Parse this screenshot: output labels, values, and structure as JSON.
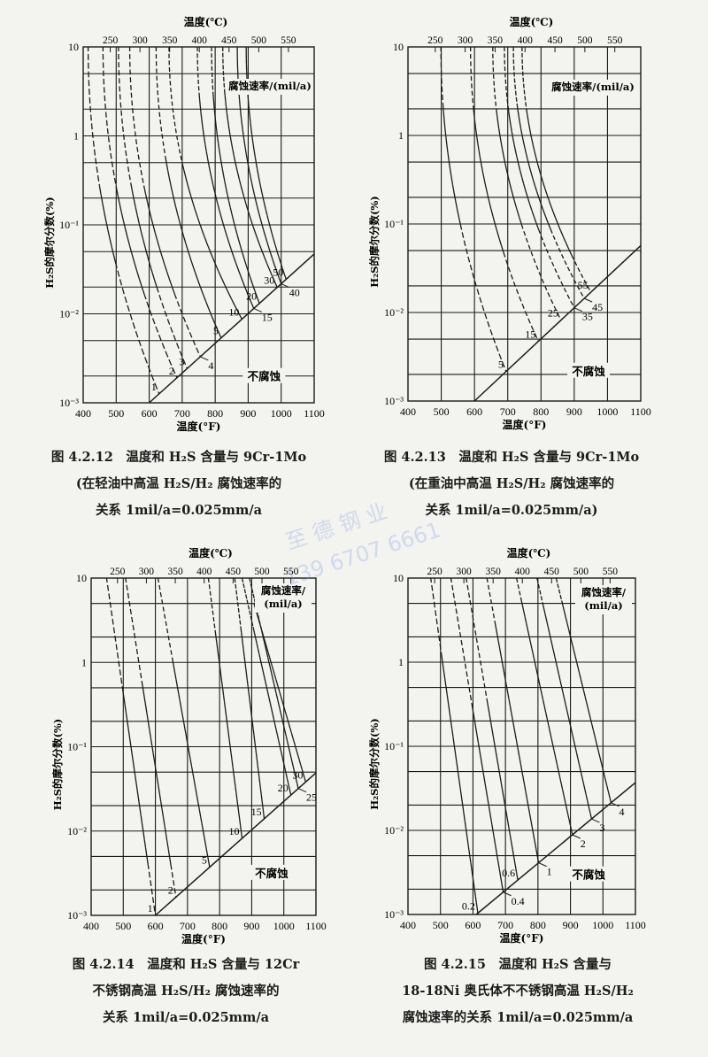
{
  "page": {
    "watermark": [
      "至 德 钢 业",
      "139 6707 6661"
    ]
  },
  "charts_common": {
    "top_axis_title": "温度(℃)",
    "bottom_axis_title": "温度(°F)",
    "y_axis_title": "H₂S的摩尔分数(%)",
    "no_corrosion_label": "不腐蚀"
  },
  "captions": [
    {
      "lines": [
        "图 4.2.12　温度和 H₂S 含量与 9Cr-1Mo",
        "(在轻油中高温 H₂S/H₂ 腐蚀速率的",
        "关系 1mil/a=0.025mm/a"
      ]
    },
    {
      "lines": [
        "图 4.2.13　温度和 H₂S 含量与 9Cr-1Mo",
        "(在重油中高温 H₂S/H₂ 腐蚀速率的",
        "关系 1mil/a=0.025mm/a)"
      ]
    },
    {
      "lines": [
        "图 4.2.14　温度和 H₂S 含量与 12Cr",
        "不锈钢高温 H₂S/H₂ 腐蚀速率的",
        "关系 1mil/a=0.025mm/a"
      ]
    },
    {
      "lines": [
        "图 4.2.15　温度和 H₂S 含量与",
        "18-18Ni 奥氏体不不锈钢高温 H₂S/H₂",
        "腐蚀速率的关系 1mil/a=0.025mm/a"
      ]
    }
  ],
  "chart_data": [
    {
      "type": "line",
      "xlabel": "温度(°F)",
      "x2label": "温度(℃)",
      "ylabel": "H₂S的摩尔分数(%)",
      "xlim": [
        400,
        1100
      ],
      "ylim": [
        0.001,
        10
      ],
      "yscale": "log",
      "grid": true,
      "xticks": [
        "400",
        "500",
        "600",
        "700",
        "800",
        "900",
        "1000",
        "1100"
      ],
      "x2ticks": [
        "250",
        "300",
        "350",
        "400",
        "450",
        "500",
        "550"
      ],
      "yticks": [
        "10",
        "1",
        "10⁻¹",
        "10⁻²",
        "10⁻³"
      ],
      "curve_shape": "concave",
      "series_title": [
        "腐蚀速率/(mil/a)"
      ],
      "boundary": {
        "label": "不腐蚀",
        "points": [
          [
            600,
            0.001
          ],
          [
            1100,
            0.047
          ]
        ]
      },
      "curves": [
        {
          "label": "1",
          "top_F": 415,
          "end_F": 630,
          "dashed": [
            [
              0.25,
              10
            ],
            [
              0.001,
              0.04
            ]
          ]
        },
        {
          "label": "2",
          "top_F": 460,
          "end_F": 684,
          "dashed": [
            [
              0.25,
              10
            ],
            [
              0.001,
              0.02
            ]
          ]
        },
        {
          "label": "3",
          "top_F": 507,
          "end_F": 715,
          "dashed": [
            [
              0.25,
              10
            ],
            [
              0.001,
              0.02
            ]
          ]
        },
        {
          "label": "4",
          "top_F": 541,
          "end_F": 755,
          "dashed": [
            [
              0.25,
              10
            ],
            [
              0.001,
              0.02
            ]
          ],
          "label_side": "right"
        },
        {
          "label": "5",
          "top_F": 621,
          "end_F": 818,
          "dashed": [
            [
              0.5,
              10
            ]
          ]
        },
        {
          "label": "10",
          "top_F": 660,
          "end_F": 881,
          "dashed": [
            [
              0.5,
              10
            ]
          ]
        },
        {
          "label": "15",
          "top_F": 746,
          "end_F": 917,
          "dashed": [
            [
              3,
              10
            ]
          ],
          "label_side": "right"
        },
        {
          "label": "20",
          "top_F": 789,
          "end_F": 934,
          "dashed": [
            [
              3,
              10
            ]
          ]
        },
        {
          "label": "30",
          "top_F": 823,
          "end_F": 988,
          "dashed": [
            [
              3,
              10
            ]
          ]
        },
        {
          "label": "40",
          "top_F": 867,
          "end_F": 1000,
          "dashed": [],
          "label_side": "right"
        },
        {
          "label": "50",
          "top_F": 894,
          "end_F": 1015,
          "dashed": []
        }
      ]
    },
    {
      "type": "line",
      "xlabel": "温度(°F)",
      "x2label": "温度(℃)",
      "ylabel": "H₂S的摩尔分数(%)",
      "xlim": [
        400,
        1100
      ],
      "ylim": [
        0.001,
        10
      ],
      "yscale": "log",
      "grid": true,
      "xticks": [
        "400",
        "500",
        "600",
        "700",
        "800",
        "900",
        "1000",
        "1100"
      ],
      "x2ticks": [
        "250",
        "300",
        "350",
        "400",
        "450",
        "500",
        "550"
      ],
      "yticks": [
        "10",
        "1",
        "10⁻¹",
        "10⁻²",
        "10⁻³"
      ],
      "curve_shape": "concave",
      "series_title": [
        "腐蚀速率/(mil/a)"
      ],
      "boundary": {
        "label": "不腐蚀",
        "points": [
          [
            600,
            0.001
          ],
          [
            1100,
            0.057
          ]
        ]
      },
      "curves": [
        {
          "label": "5",
          "top_F": 499,
          "end_F": 695,
          "dashed": [
            [
              2,
              10
            ],
            [
              0.001,
              0.1
            ]
          ]
        },
        {
          "label": "15",
          "top_F": 588,
          "end_F": 792,
          "dashed": [
            [
              2,
              10
            ],
            [
              0.001,
              0.05
            ]
          ]
        },
        {
          "label": "25",
          "top_F": 655,
          "end_F": 860,
          "dashed": [
            [
              2,
              10
            ],
            [
              0.001,
              0.1
            ]
          ]
        },
        {
          "label": "35",
          "top_F": 690,
          "end_F": 900,
          "dashed": [
            [
              2,
              10
            ],
            [
              0.001,
              0.1
            ]
          ],
          "label_side": "right"
        },
        {
          "label": "45",
          "top_F": 717,
          "end_F": 930,
          "dashed": [
            [
              2,
              10
            ],
            [
              0.001,
              0.1
            ]
          ],
          "label_side": "right"
        },
        {
          "label": "55",
          "top_F": 743,
          "end_F": 950,
          "dashed": [
            [
              2,
              10
            ],
            [
              0.001,
              0.05
            ]
          ]
        }
      ]
    },
    {
      "type": "line",
      "xlabel": "温度(°F)",
      "x2label": "温度(℃)",
      "ylabel": "H₂S的摩尔分数(%)",
      "xlim": [
        400,
        1100
      ],
      "ylim": [
        0.001,
        10
      ],
      "yscale": "log",
      "grid": true,
      "xticks": [
        "400",
        "500",
        "600",
        "700",
        "800",
        "900",
        "1000",
        "1100"
      ],
      "x2ticks": [
        "250",
        "300",
        "350",
        "400",
        "450",
        "500",
        "550"
      ],
      "yticks": [
        "10",
        "1",
        "10⁻¹",
        "10⁻²",
        "10⁻³"
      ],
      "curve_shape": "straight",
      "series_title": [
        "腐蚀速率/",
        "(mil/a)"
      ],
      "boundary": {
        "label": "不腐蚀",
        "points": [
          [
            600,
            0.001
          ],
          [
            1100,
            0.049
          ]
        ]
      },
      "curves": [
        {
          "label": "1",
          "top_F": 448,
          "end_F": 600,
          "dashed": [
            [
              0.5,
              10
            ],
            [
              0.001,
              0.004
            ]
          ]
        },
        {
          "label": "2",
          "top_F": 507,
          "end_F": 664,
          "dashed": [
            [
              0.5,
              10
            ],
            [
              0.001,
              0.004
            ]
          ]
        },
        {
          "label": "5",
          "top_F": 608,
          "end_F": 769,
          "dashed": [
            [
              1,
              10
            ]
          ]
        },
        {
          "label": "10",
          "top_F": 765,
          "end_F": 870,
          "dashed": [
            [
              2.3,
              10
            ]
          ]
        },
        {
          "label": "15",
          "top_F": 847,
          "end_F": 939,
          "dashed": [
            [
              2.3,
              10
            ]
          ]
        },
        {
          "label": "20",
          "top_F": 870,
          "end_F": 1022,
          "dashed": [
            [
              2.3,
              10
            ]
          ]
        },
        {
          "label": "25",
          "top_F": 893,
          "end_F": 1045,
          "dashed": [
            [
              2.3,
              10
            ]
          ],
          "label_side": "right"
        },
        {
          "label": "30",
          "top_F": 907,
          "top_y": 5,
          "end_F": 1068,
          "dashed": []
        }
      ]
    },
    {
      "type": "line",
      "xlabel": "温度(°F)",
      "x2label": "温度(℃)",
      "ylabel": "H₂S的摩尔分数(%)",
      "xlim": [
        400,
        1100
      ],
      "ylim": [
        0.001,
        10
      ],
      "yscale": "log",
      "grid": true,
      "xticks": [
        "400",
        "500",
        "600",
        "700",
        "800",
        "900",
        "1000",
        "1100"
      ],
      "x2ticks": [
        "250",
        "300",
        "350",
        "400",
        "450",
        "500",
        "550"
      ],
      "yticks": [
        "10",
        "1",
        "10⁻¹",
        "10⁻²",
        "10⁻³"
      ],
      "curve_shape": "straight",
      "series_title": [
        "腐蚀速率/",
        "(mil/a)"
      ],
      "boundary": {
        "label": "不腐蚀",
        "points": [
          [
            610,
            0.001
          ],
          [
            1100,
            0.037
          ]
        ]
      },
      "curves": [
        {
          "label": "0.2",
          "top_F": 470,
          "end_F": 615,
          "dashed": [
            [
              1.2,
              10
            ]
          ]
        },
        {
          "label": "0.4",
          "top_F": 532,
          "end_F": 693,
          "dashed": [
            [
              0.3,
              10
            ]
          ],
          "label_side": "right"
        },
        {
          "label": "0.6",
          "top_F": 579,
          "end_F": 738,
          "dashed": [
            [
              0.3,
              10
            ]
          ]
        },
        {
          "label": "1",
          "top_F": 643,
          "end_F": 802,
          "dashed": [
            [
              3,
              10
            ]
          ],
          "label_side": "right"
        },
        {
          "label": "2",
          "top_F": 734,
          "end_F": 906,
          "dashed": [
            [
              5,
              10
            ]
          ],
          "label_side": "right"
        },
        {
          "label": "3",
          "top_F": 797,
          "end_F": 965,
          "dashed": [
            [
              5,
              10
            ]
          ],
          "label_side": "right"
        },
        {
          "label": "4",
          "top_F": 856,
          "end_F": 1025,
          "dashed": [
            [
              5,
              10
            ]
          ],
          "label_side": "right"
        }
      ]
    }
  ]
}
